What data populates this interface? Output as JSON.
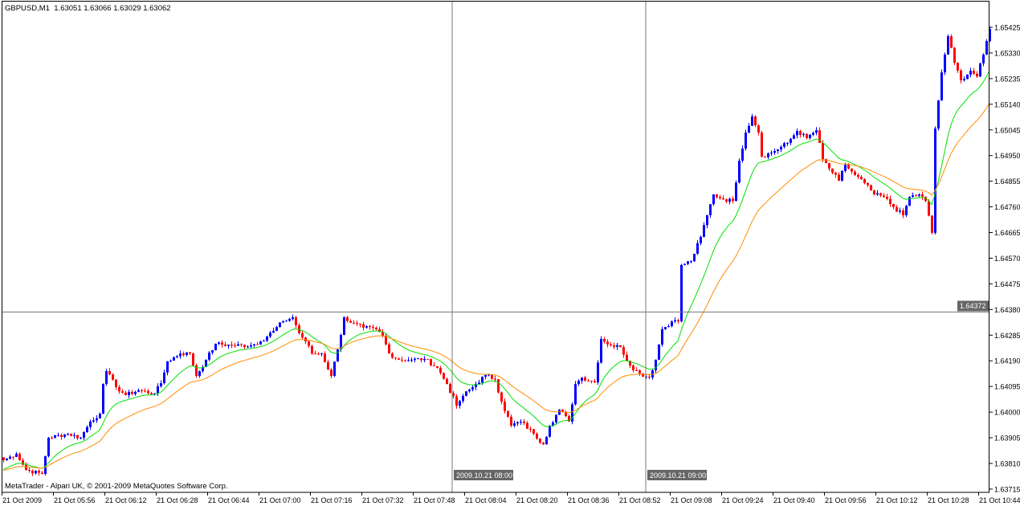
{
  "header": {
    "symbol": "GBPUSD,M1",
    "ohlc": "1.63051 1.63066 1.63029 1.63062"
  },
  "copyright": "MetaTrader - Alpari UK, © 2001-2009 MetaQuotes Software Corp.",
  "crosshair": {
    "price_label": "1.64372",
    "price": 1.64372
  },
  "separators": [
    {
      "label": "2009.10.21 08:00",
      "time": "08:00"
    },
    {
      "label": "2009.10.21 09:00",
      "time": "09:00"
    }
  ],
  "colors": {
    "bull": "#0000ff",
    "bear": "#ff0000",
    "ma_fast": "#00e000",
    "ma_slow": "#ff8c00",
    "highlight_bg": "#666666"
  },
  "chart_data": {
    "type": "candlestick",
    "title": "GBPUSD,M1",
    "timeframe": "M1",
    "xlim": [
      "05:40",
      "10:47"
    ],
    "ylim": [
      1.63715,
      1.65425
    ],
    "grid": false,
    "y_ticks": [
      "1.65425",
      "1.65330",
      "1.65235",
      "1.65140",
      "1.65045",
      "1.64950",
      "1.64855",
      "1.64760",
      "1.64665",
      "1.64570",
      "1.64475",
      "1.64380",
      "1.64285",
      "1.64190",
      "1.64095",
      "1.64000",
      "1.63905",
      "1.63810",
      "1.63715"
    ],
    "x_ticks": [
      "21 Oct 2009",
      "21 Oct 05:56",
      "21 Oct 06:12",
      "21 Oct 06:28",
      "21 Oct 06:44",
      "21 Oct 07:00",
      "21 Oct 07:16",
      "21 Oct 07:32",
      "21 Oct 07:48",
      "21 Oct 08:04",
      "21 Oct 08:20",
      "21 Oct 08:36",
      "21 Oct 08:52",
      "21 Oct 09:08",
      "21 Oct 09:24",
      "21 Oct 09:40",
      "21 Oct 09:56",
      "21 Oct 10:12",
      "21 Oct 10:28",
      "21 Oct 10:44"
    ],
    "close_path": [
      [
        "05:40",
        1.63822
      ],
      [
        "05:44",
        1.63846
      ],
      [
        "05:47",
        1.63786
      ],
      [
        "05:52",
        1.63771
      ],
      [
        "05:54",
        1.63905
      ],
      [
        "06:00",
        1.6392
      ],
      [
        "06:04",
        1.63905
      ],
      [
        "06:07",
        1.63965
      ],
      [
        "06:10",
        1.63994
      ],
      [
        "06:11",
        1.64104
      ],
      [
        "06:12",
        1.64152
      ],
      [
        "06:15",
        1.64093
      ],
      [
        "06:18",
        1.64063
      ],
      [
        "06:22",
        1.64081
      ],
      [
        "06:27",
        1.64069
      ],
      [
        "06:29",
        1.64107
      ],
      [
        "06:31",
        1.64188
      ],
      [
        "06:35",
        1.64217
      ],
      [
        "06:38",
        1.64217
      ],
      [
        "06:40",
        1.64134
      ],
      [
        "06:43",
        1.64194
      ],
      [
        "06:46",
        1.64253
      ],
      [
        "06:51",
        1.64247
      ],
      [
        "06:57",
        1.64247
      ],
      [
        "07:00",
        1.64262
      ],
      [
        "07:04",
        1.64301
      ],
      [
        "07:07",
        1.64336
      ],
      [
        "07:10",
        1.64351
      ],
      [
        "07:12",
        1.64292
      ],
      [
        "07:14",
        1.64262
      ],
      [
        "07:16",
        1.64217
      ],
      [
        "07:19",
        1.64217
      ],
      [
        "07:22",
        1.64134
      ],
      [
        "07:24",
        1.64232
      ],
      [
        "07:26",
        1.64351
      ],
      [
        "07:28",
        1.64331
      ],
      [
        "07:32",
        1.64313
      ],
      [
        "07:36",
        1.64307
      ],
      [
        "07:38",
        1.64283
      ],
      [
        "07:40",
        1.64217
      ],
      [
        "07:43",
        1.64194
      ],
      [
        "07:47",
        1.64194
      ],
      [
        "07:51",
        1.64197
      ],
      [
        "07:55",
        1.64164
      ],
      [
        "07:58",
        1.64104
      ],
      [
        "08:01",
        1.64024
      ],
      [
        "08:03",
        1.6406
      ],
      [
        "08:07",
        1.64104
      ],
      [
        "08:10",
        1.64137
      ],
      [
        "08:13",
        1.64122
      ],
      [
        "08:15",
        1.64039
      ],
      [
        "08:18",
        1.6395
      ],
      [
        "08:21",
        1.63965
      ],
      [
        "08:25",
        1.6392
      ],
      [
        "08:28",
        1.63881
      ],
      [
        "08:30",
        1.6395
      ],
      [
        "08:33",
        1.64009
      ],
      [
        "08:36",
        1.63965
      ],
      [
        "08:38",
        1.64104
      ],
      [
        "08:40",
        1.64128
      ],
      [
        "08:44",
        1.6411
      ],
      [
        "08:46",
        1.64271
      ],
      [
        "08:49",
        1.64247
      ],
      [
        "08:52",
        1.64241
      ],
      [
        "08:55",
        1.64173
      ],
      [
        "08:58",
        1.64143
      ],
      [
        "09:01",
        1.64128
      ],
      [
        "09:03",
        1.64194
      ],
      [
        "09:05",
        1.64307
      ],
      [
        "09:08",
        1.64336
      ],
      [
        "09:10",
        1.64336
      ],
      [
        "09:11",
        1.64545
      ],
      [
        "09:14",
        1.64559
      ],
      [
        "09:17",
        1.64649
      ],
      [
        "09:19",
        1.64729
      ],
      [
        "09:21",
        1.64806
      ],
      [
        "09:24",
        1.64788
      ],
      [
        "09:27",
        1.64782
      ],
      [
        "09:29",
        1.64931
      ],
      [
        "09:31",
        1.65035
      ],
      [
        "09:33",
        1.65095
      ],
      [
        "09:35",
        1.65035
      ],
      [
        "09:36",
        1.64946
      ],
      [
        "09:40",
        1.64967
      ],
      [
        "09:44",
        1.64997
      ],
      [
        "09:47",
        1.65041
      ],
      [
        "09:50",
        1.65015
      ],
      [
        "09:53",
        1.65044
      ],
      [
        "09:55",
        1.64937
      ],
      [
        "09:57",
        1.64902
      ],
      [
        "10:00",
        1.64857
      ],
      [
        "10:02",
        1.64916
      ],
      [
        "10:05",
        1.64878
      ],
      [
        "10:08",
        1.64848
      ],
      [
        "10:11",
        1.64806
      ],
      [
        "10:14",
        1.64797
      ],
      [
        "10:17",
        1.64759
      ],
      [
        "10:20",
        1.64729
      ],
      [
        "10:22",
        1.64797
      ],
      [
        "10:25",
        1.64806
      ],
      [
        "10:27",
        1.64782
      ],
      [
        "10:29",
        1.64664
      ],
      [
        "10:30",
        1.6505
      ],
      [
        "10:32",
        1.65258
      ],
      [
        "10:34",
        1.65392
      ],
      [
        "10:36",
        1.65294
      ],
      [
        "10:38",
        1.65229
      ],
      [
        "10:41",
        1.65264
      ],
      [
        "10:43",
        1.65243
      ],
      [
        "10:45",
        1.65324
      ],
      [
        "10:47",
        1.65419
      ]
    ]
  }
}
